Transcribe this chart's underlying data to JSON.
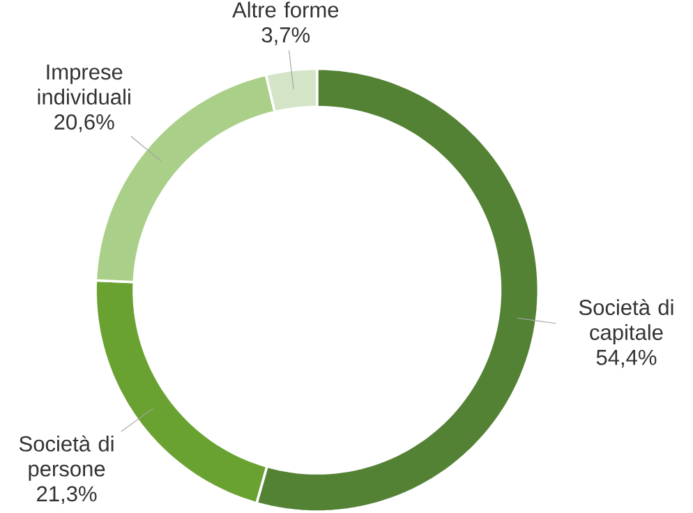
{
  "chart_data": {
    "type": "donut",
    "categories": [
      "Società di capitale",
      "Società di persone",
      "Imprese individuali",
      "Altre forme"
    ],
    "values": [
      54.4,
      21.3,
      20.6,
      3.7
    ],
    "colors": [
      "#548235",
      "#6aa232",
      "#a9cf88",
      "#d3e4c7"
    ],
    "value_labels": [
      "54,4%",
      "21,3%",
      "20,6%",
      "3,7%"
    ]
  }
}
